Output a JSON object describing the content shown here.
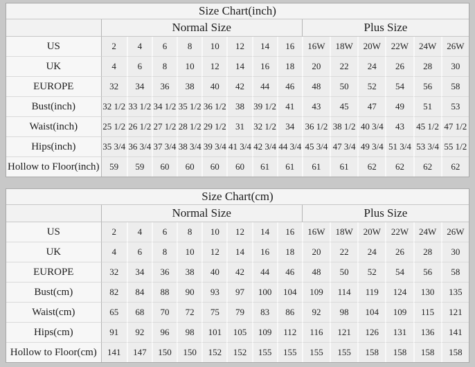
{
  "theme": {
    "page_background": "#c8c8c8",
    "cell_background": "#ededed",
    "label_background": "#f7f7f7",
    "header_background": "#f3f3f3",
    "strong_border": "#b3b3b3",
    "light_border": "#dadada",
    "text_color": "#1b1b1b"
  },
  "chart_data": [
    {
      "type": "table",
      "title": "Size Chart(inch)",
      "groups": [
        {
          "label": "Normal Size",
          "span": 8
        },
        {
          "label": "Plus Size",
          "span": 6
        }
      ],
      "rows": [
        {
          "label": "US",
          "values": [
            "2",
            "4",
            "6",
            "8",
            "10",
            "12",
            "14",
            "16",
            "16W",
            "18W",
            "20W",
            "22W",
            "24W",
            "26W"
          ]
        },
        {
          "label": "UK",
          "values": [
            "4",
            "6",
            "8",
            "10",
            "12",
            "14",
            "16",
            "18",
            "20",
            "22",
            "24",
            "26",
            "28",
            "30"
          ]
        },
        {
          "label": "EUROPE",
          "values": [
            "32",
            "34",
            "36",
            "38",
            "40",
            "42",
            "44",
            "46",
            "48",
            "50",
            "52",
            "54",
            "56",
            "58"
          ]
        },
        {
          "label": "Bust(inch)",
          "values": [
            "32 1/2",
            "33 1/2",
            "34 1/2",
            "35 1/2",
            "36 1/2",
            "38",
            "39 1/2",
            "41",
            "43",
            "45",
            "47",
            "49",
            "51",
            "53"
          ]
        },
        {
          "label": "Waist(inch)",
          "values": [
            "25 1/2",
            "26 1/2",
            "27 1/2",
            "28 1/2",
            "29 1/2",
            "31",
            "32 1/2",
            "34",
            "36 1/2",
            "38 1/2",
            "40 3/4",
            "43",
            "45 1/2",
            "47 1/2"
          ]
        },
        {
          "label": "Hips(inch)",
          "values": [
            "35 3/4",
            "36 3/4",
            "37 3/4",
            "38 3/4",
            "39 3/4",
            "41 3/4",
            "42 3/4",
            "44 3/4",
            "45 3/4",
            "47 3/4",
            "49 3/4",
            "51 3/4",
            "53 3/4",
            "55 1/2"
          ]
        },
        {
          "label": "Hollow to Floor(inch)",
          "values": [
            "59",
            "59",
            "60",
            "60",
            "60",
            "60",
            "61",
            "61",
            "61",
            "61",
            "62",
            "62",
            "62",
            "62"
          ]
        }
      ]
    },
    {
      "type": "table",
      "title": "Size Chart(cm)",
      "groups": [
        {
          "label": "Normal Size",
          "span": 8
        },
        {
          "label": "Plus Size",
          "span": 6
        }
      ],
      "rows": [
        {
          "label": "US",
          "values": [
            "2",
            "4",
            "6",
            "8",
            "10",
            "12",
            "14",
            "16",
            "16W",
            "18W",
            "20W",
            "22W",
            "24W",
            "26W"
          ]
        },
        {
          "label": "UK",
          "values": [
            "4",
            "6",
            "8",
            "10",
            "12",
            "14",
            "16",
            "18",
            "20",
            "22",
            "24",
            "26",
            "28",
            "30"
          ]
        },
        {
          "label": "EUROPE",
          "values": [
            "32",
            "34",
            "36",
            "38",
            "40",
            "42",
            "44",
            "46",
            "48",
            "50",
            "52",
            "54",
            "56",
            "58"
          ]
        },
        {
          "label": "Bust(cm)",
          "values": [
            "82",
            "84",
            "88",
            "90",
            "93",
            "97",
            "100",
            "104",
            "109",
            "114",
            "119",
            "124",
            "130",
            "135"
          ]
        },
        {
          "label": "Waist(cm)",
          "values": [
            "65",
            "68",
            "70",
            "72",
            "75",
            "79",
            "83",
            "86",
            "92",
            "98",
            "104",
            "109",
            "115",
            "121"
          ]
        },
        {
          "label": "Hips(cm)",
          "values": [
            "91",
            "92",
            "96",
            "98",
            "101",
            "105",
            "109",
            "112",
            "116",
            "121",
            "126",
            "131",
            "136",
            "141"
          ]
        },
        {
          "label": "Hollow to Floor(cm)",
          "values": [
            "141",
            "147",
            "150",
            "150",
            "152",
            "152",
            "155",
            "155",
            "155",
            "155",
            "158",
            "158",
            "158",
            "158"
          ]
        }
      ]
    }
  ]
}
